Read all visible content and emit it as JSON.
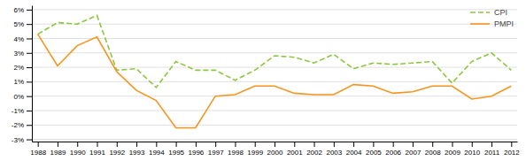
{
  "chart_data": {
    "type": "line",
    "x": [
      1988,
      1989,
      1990,
      1991,
      1992,
      1993,
      1994,
      1995,
      1996,
      1997,
      1998,
      1999,
      2000,
      2001,
      2002,
      2003,
      2004,
      2005,
      2006,
      2007,
      2008,
      2009,
      2010,
      2011,
      2012
    ],
    "series": [
      {
        "name": "CPI",
        "color": "#8dc63f",
        "line_style": "dashed",
        "values": [
          4.3,
          5.1,
          5.0,
          5.6,
          1.8,
          1.9,
          0.6,
          2.4,
          1.8,
          1.8,
          1.1,
          1.8,
          2.8,
          2.7,
          2.3,
          2.9,
          1.9,
          2.3,
          2.2,
          2.3,
          2.4,
          0.9,
          2.4,
          3.0,
          1.8
        ]
      },
      {
        "name": "PMPI",
        "color": "#f7941d",
        "line_style": "solid",
        "values": [
          4.3,
          2.1,
          3.5,
          4.1,
          1.7,
          0.4,
          -0.3,
          -2.2,
          -2.2,
          0.0,
          0.1,
          0.7,
          0.7,
          0.2,
          0.1,
          0.1,
          0.8,
          0.7,
          0.2,
          0.3,
          0.7,
          0.7,
          -0.2,
          0.0,
          0.7
        ]
      }
    ],
    "xlim": [
      1987.7,
      2012.3
    ],
    "xticks": [
      1988,
      1989,
      1990,
      1991,
      1992,
      1993,
      1994,
      1995,
      1996,
      1997,
      1998,
      1999,
      2000,
      2001,
      2002,
      2003,
      2004,
      2005,
      2006,
      2007,
      2008,
      2009,
      2010,
      2011,
      2012
    ],
    "ylim": [
      -3.15,
      6.3
    ],
    "yticks": [
      {
        "value": -3,
        "label": "-3%"
      },
      {
        "value": -2,
        "label": "-2%"
      },
      {
        "value": -1,
        "label": "-1%"
      },
      {
        "value": 0,
        "label": "0%"
      },
      {
        "value": 1,
        "label": "1%"
      },
      {
        "value": 2,
        "label": "2%"
      },
      {
        "value": 3,
        "label": "3%"
      },
      {
        "value": 4,
        "label": "4%"
      },
      {
        "value": 5,
        "label": "5%"
      },
      {
        "value": 6,
        "label": "6%"
      }
    ],
    "grid": true,
    "legend": "upper right"
  }
}
